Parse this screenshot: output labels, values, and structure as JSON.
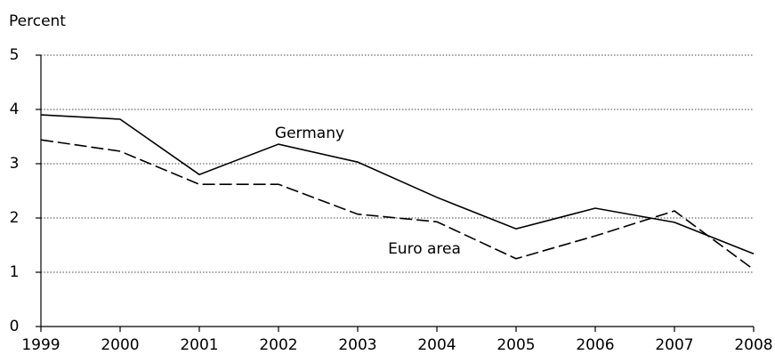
{
  "chart_data": {
    "type": "line",
    "y_label": "Percent",
    "x": [
      1999,
      2000,
      2001,
      2002,
      2003,
      2004,
      2005,
      2006,
      2007,
      2008
    ],
    "series": [
      {
        "name": "Germany",
        "color": "#000000",
        "dash": "solid",
        "values": [
          3.9,
          3.82,
          2.8,
          3.36,
          3.03,
          2.38,
          1.8,
          2.18,
          1.92,
          1.34
        ]
      },
      {
        "name": "Euro area",
        "color": "#000000",
        "dash": "dashed",
        "values": [
          3.44,
          3.23,
          2.62,
          2.62,
          2.07,
          1.93,
          1.25,
          1.67,
          2.13,
          1.05
        ]
      }
    ],
    "xlim": [
      1999,
      2008
    ],
    "xticks": [
      1999,
      2000,
      2001,
      2002,
      2003,
      2004,
      2005,
      2006,
      2007,
      2008
    ],
    "ylim": [
      0,
      5
    ],
    "yticks": [
      0,
      1,
      2,
      3,
      4,
      5
    ],
    "grid": true
  }
}
